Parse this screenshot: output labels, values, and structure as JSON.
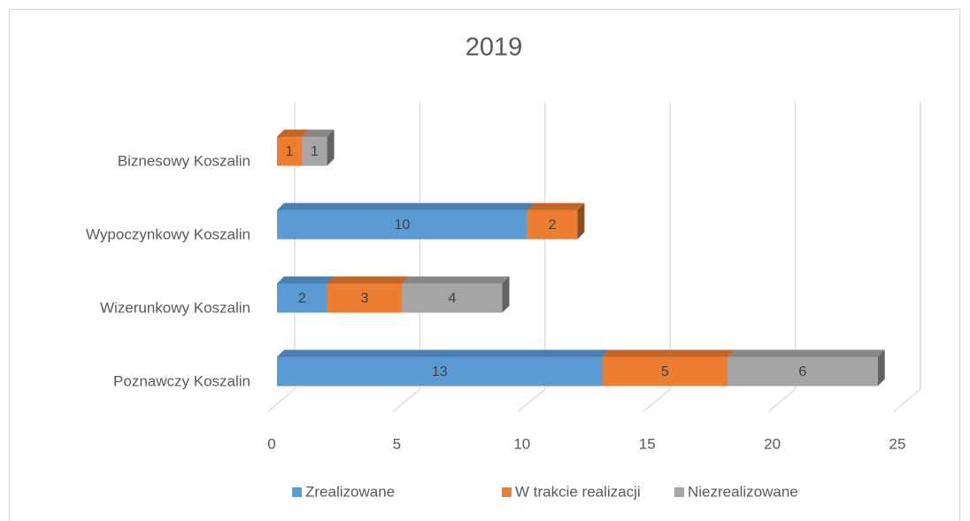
{
  "chart_data": {
    "type": "bar3d_stacked_horizontal",
    "title": "2019",
    "categories": [
      "Poznawczy Koszalin",
      "Wizerunkowy Koszalin",
      "Wypoczynkowy Koszalin",
      "Biznesowy Koszalin"
    ],
    "series": [
      {
        "name": "Zrealizowane",
        "color": "#5b9bd5",
        "values": [
          13,
          2,
          10,
          null
        ]
      },
      {
        "name": "W trakcie realizacji",
        "color": "#ed7d31",
        "values": [
          5,
          3,
          2,
          1
        ]
      },
      {
        "name": "Niezrealizowane",
        "color": "#a5a5a5",
        "values": [
          6,
          4,
          null,
          1
        ]
      }
    ],
    "xlim": [
      0,
      25
    ],
    "xticks": [
      0,
      5,
      10,
      15,
      20,
      25
    ],
    "grid": true,
    "legend": "bottom"
  }
}
